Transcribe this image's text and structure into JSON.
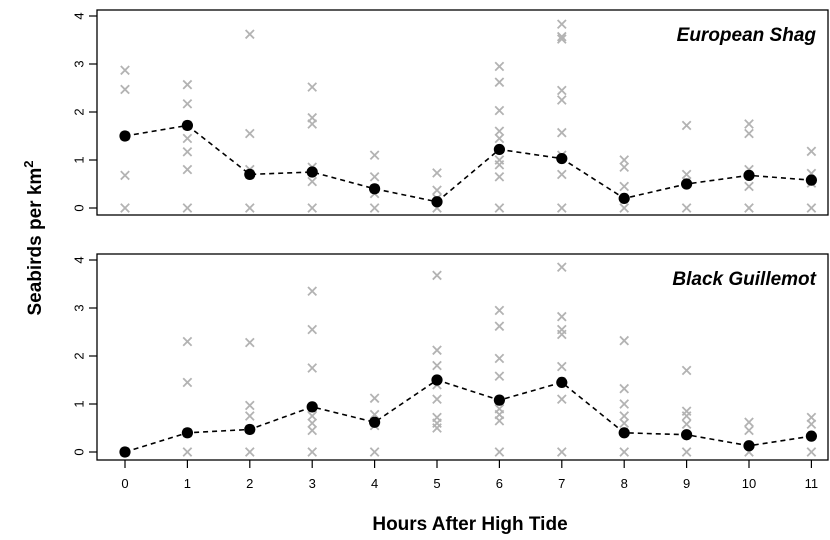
{
  "chart_data": {
    "type": "scatter",
    "xlabel": "Hours After High Tide",
    "ylabel_main": "Seabirds per km",
    "ylabel_sup": "2",
    "x_ticks": [
      "0",
      "1",
      "2",
      "3",
      "4",
      "5",
      "6",
      "7",
      "8",
      "9",
      "10",
      "11"
    ],
    "y_ticks": [
      "0",
      "1",
      "2",
      "3",
      "4"
    ],
    "xlim": [
      -0.45,
      11.3
    ],
    "ylim": [
      -0.15,
      4.15
    ],
    "colors": {
      "raw": "#b3b3b3",
      "mean": "#000000",
      "frame": "#000000"
    },
    "panels": [
      {
        "title": "European Shag",
        "mean": [
          [
            0,
            1.5
          ],
          [
            1,
            1.72
          ],
          [
            2,
            0.7
          ],
          [
            3,
            0.75
          ],
          [
            4,
            0.4
          ],
          [
            5,
            0.13
          ],
          [
            6,
            1.22
          ],
          [
            7,
            1.03
          ],
          [
            8,
            0.2
          ],
          [
            9,
            0.5
          ],
          [
            10,
            0.68
          ],
          [
            11,
            0.58
          ]
        ],
        "raw": [
          [
            0,
            2.87
          ],
          [
            0,
            2.47
          ],
          [
            0,
            1.5
          ],
          [
            0,
            0.68
          ],
          [
            0,
            0
          ],
          [
            1,
            2.57
          ],
          [
            1,
            2.17
          ],
          [
            1,
            1.72
          ],
          [
            1,
            1.45
          ],
          [
            1,
            1.17
          ],
          [
            1,
            0.8
          ],
          [
            1,
            0
          ],
          [
            2,
            3.62
          ],
          [
            2,
            1.55
          ],
          [
            2,
            0.8
          ],
          [
            2,
            0.7
          ],
          [
            2,
            0
          ],
          [
            3,
            2.52
          ],
          [
            3,
            1.88
          ],
          [
            3,
            1.75
          ],
          [
            3,
            0.85
          ],
          [
            3,
            0.55
          ],
          [
            3,
            0
          ],
          [
            4,
            1.1
          ],
          [
            4,
            0.65
          ],
          [
            4,
            0.4
          ],
          [
            4,
            0.3
          ],
          [
            4,
            0
          ],
          [
            5,
            0.73
          ],
          [
            5,
            0.37
          ],
          [
            5,
            0.2
          ],
          [
            5,
            0
          ],
          [
            6,
            2.95
          ],
          [
            6,
            2.62
          ],
          [
            6,
            2.03
          ],
          [
            6,
            1.6
          ],
          [
            6,
            1.45
          ],
          [
            6,
            1.0
          ],
          [
            6,
            0.9
          ],
          [
            6,
            0.65
          ],
          [
            6,
            0
          ],
          [
            7,
            3.83
          ],
          [
            7,
            3.57
          ],
          [
            7,
            3.52
          ],
          [
            7,
            2.45
          ],
          [
            7,
            2.25
          ],
          [
            7,
            1.57
          ],
          [
            7,
            1.1
          ],
          [
            7,
            0.7
          ],
          [
            7,
            0
          ],
          [
            8,
            1.0
          ],
          [
            8,
            0.85
          ],
          [
            8,
            0.45
          ],
          [
            8,
            0
          ],
          [
            9,
            1.72
          ],
          [
            9,
            0.7
          ],
          [
            9,
            0.55
          ],
          [
            9,
            0
          ],
          [
            10,
            1.75
          ],
          [
            10,
            1.55
          ],
          [
            10,
            0.8
          ],
          [
            10,
            0.45
          ],
          [
            10,
            0
          ],
          [
            11,
            1.18
          ],
          [
            11,
            0.72
          ],
          [
            11,
            0.52
          ],
          [
            11,
            0
          ]
        ]
      },
      {
        "title": "Black Guillemot",
        "mean": [
          [
            0,
            0
          ],
          [
            1,
            0.4
          ],
          [
            2,
            0.47
          ],
          [
            3,
            0.94
          ],
          [
            4,
            0.62
          ],
          [
            5,
            1.5
          ],
          [
            6,
            1.08
          ],
          [
            7,
            1.45
          ],
          [
            8,
            0.4
          ],
          [
            9,
            0.36
          ],
          [
            10,
            0.13
          ],
          [
            11,
            0.33
          ]
        ],
        "raw": [
          [
            0,
            0
          ],
          [
            1,
            2.3
          ],
          [
            1,
            1.45
          ],
          [
            1,
            0.4
          ],
          [
            1,
            0
          ],
          [
            2,
            2.28
          ],
          [
            2,
            0.97
          ],
          [
            2,
            0.75
          ],
          [
            2,
            0.47
          ],
          [
            2,
            0
          ],
          [
            3,
            3.35
          ],
          [
            3,
            2.55
          ],
          [
            3,
            1.75
          ],
          [
            3,
            0.92
          ],
          [
            3,
            0.75
          ],
          [
            3,
            0.6
          ],
          [
            3,
            0.45
          ],
          [
            3,
            0
          ],
          [
            4,
            1.12
          ],
          [
            4,
            0.78
          ],
          [
            4,
            0.62
          ],
          [
            4,
            0.55
          ],
          [
            4,
            0
          ],
          [
            5,
            3.68
          ],
          [
            5,
            2.12
          ],
          [
            5,
            1.8
          ],
          [
            5,
            1.4
          ],
          [
            5,
            1.1
          ],
          [
            5,
            0.72
          ],
          [
            5,
            0.6
          ],
          [
            5,
            0.5
          ],
          [
            6,
            2.95
          ],
          [
            6,
            2.62
          ],
          [
            6,
            1.95
          ],
          [
            6,
            1.58
          ],
          [
            6,
            1.08
          ],
          [
            6,
            0.9
          ],
          [
            6,
            0.78
          ],
          [
            6,
            0.65
          ],
          [
            6,
            0
          ],
          [
            7,
            3.85
          ],
          [
            7,
            2.82
          ],
          [
            7,
            2.55
          ],
          [
            7,
            2.45
          ],
          [
            7,
            1.78
          ],
          [
            7,
            1.1
          ],
          [
            7,
            0
          ],
          [
            8,
            2.32
          ],
          [
            8,
            1.32
          ],
          [
            8,
            1.0
          ],
          [
            8,
            0.75
          ],
          [
            8,
            0.6
          ],
          [
            8,
            0
          ],
          [
            9,
            1.7
          ],
          [
            9,
            0.85
          ],
          [
            9,
            0.75
          ],
          [
            9,
            0.58
          ],
          [
            9,
            0
          ],
          [
            10,
            0.62
          ],
          [
            10,
            0.45
          ],
          [
            10,
            0
          ],
          [
            11,
            0.72
          ],
          [
            11,
            0.58
          ],
          [
            11,
            0
          ]
        ]
      }
    ]
  }
}
